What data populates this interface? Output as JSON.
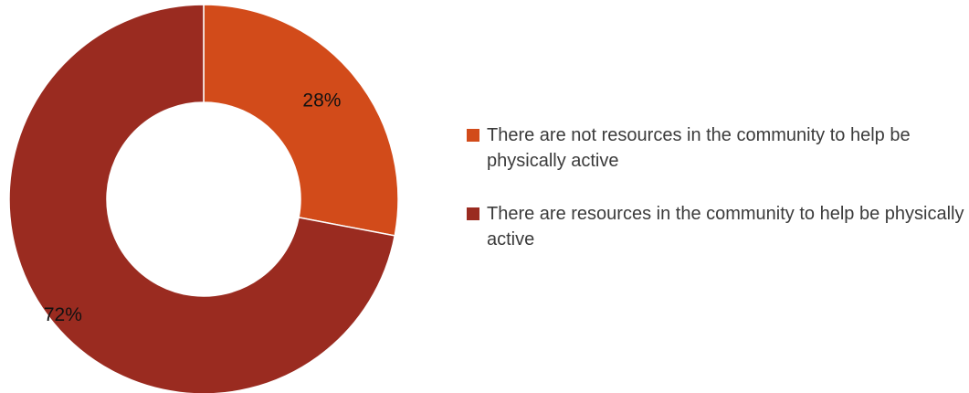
{
  "chart_data": {
    "type": "pie",
    "subtype": "donut",
    "slices": [
      {
        "label": "There are not resources in the community to help be physically active",
        "value": 28,
        "display": "28%",
        "color": "#d24b1a"
      },
      {
        "label": "There are resources in the community to help be physically active",
        "value": 72,
        "display": "72%",
        "color": "#9a2b20"
      }
    ],
    "legend_position": "right"
  }
}
